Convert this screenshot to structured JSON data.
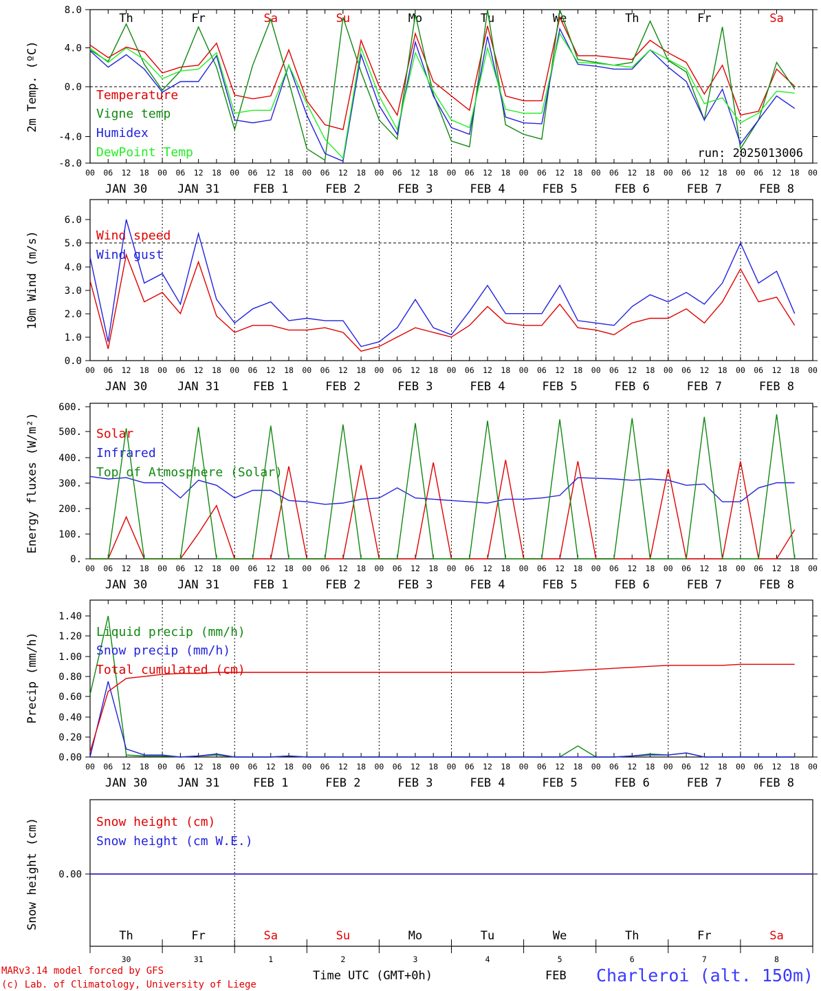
{
  "chart_data": [
    {
      "type": "line",
      "ylabel": "2m Temp. (ºC)",
      "ylim": [
        -8,
        8
      ],
      "yticks": [
        "-8.0",
        "-4.0",
        "0.0",
        "4.0",
        "8.0"
      ],
      "annotation": "run: 2025013006",
      "day_of_week": [
        "Th",
        "Fr",
        "Sa",
        "Su",
        "Mo",
        "Tu",
        "We",
        "Th",
        "Fr",
        "Sa"
      ],
      "weekend_color": "#e00000",
      "x_hours": [
        0,
        6,
        12,
        18,
        24,
        30,
        36,
        42,
        48,
        54,
        60,
        66,
        72,
        78,
        84,
        90,
        96,
        102,
        108,
        114,
        120,
        126,
        132,
        138,
        144,
        150,
        156,
        162,
        168,
        174,
        180,
        186,
        192,
        198,
        204,
        210,
        216,
        222,
        228,
        234
      ],
      "series": [
        {
          "name": "Temperature",
          "color": "#e00000",
          "values": [
            4.3,
            3.0,
            4.1,
            3.6,
            1.4,
            2.0,
            2.2,
            4.5,
            -0.9,
            -1.3,
            -1.0,
            3.8,
            -1.5,
            -4.0,
            -4.5,
            4.8,
            0.0,
            -3.0,
            5.5,
            0.5,
            -1.0,
            -2.5,
            6.3,
            -1.0,
            -1.5,
            -1.5,
            7.2,
            3.2,
            3.2,
            3.0,
            2.8,
            4.8,
            3.5,
            2.5,
            -0.8,
            2.2,
            -3.0,
            -2.6,
            1.8,
            0.0
          ]
        },
        {
          "name": "Vigne temp",
          "color": "#118811",
          "values": [
            3.8,
            2.6,
            6.5,
            2.3,
            -0.4,
            1.6,
            6.2,
            2.0,
            -4.5,
            2.2,
            7.0,
            0.5,
            -6.5,
            -7.7,
            7.2,
            1.5,
            -3.5,
            -5.5,
            7.5,
            -0.8,
            -5.7,
            -6.3,
            8.0,
            -4.0,
            -5.0,
            -5.5,
            8.0,
            2.8,
            2.5,
            2.2,
            2.5,
            6.8,
            2.7,
            1.5,
            -3.5,
            6.2,
            -6.5,
            -3.5,
            2.5,
            -0.3
          ]
        },
        {
          "name": "Humidex",
          "color": "#2222dd",
          "values": [
            3.7,
            2.0,
            3.3,
            1.8,
            -0.6,
            0.5,
            0.5,
            3.2,
            -3.5,
            -3.8,
            -3.5,
            2.2,
            -3.0,
            -7.0,
            -7.8,
            3.3,
            -2.0,
            -5.0,
            4.6,
            -1.0,
            -4.3,
            -5.0,
            5.2,
            -3.2,
            -3.8,
            -3.9,
            6.0,
            2.3,
            2.1,
            1.8,
            1.8,
            3.8,
            2.0,
            0.5,
            -3.5,
            -0.3,
            -6.0,
            -3.5,
            -1.0,
            -2.3
          ]
        },
        {
          "name": "DewPoint Temp",
          "color": "#22ee22",
          "values": [
            4.0,
            2.5,
            4.0,
            2.8,
            0.8,
            1.6,
            1.8,
            3.5,
            -2.8,
            -2.5,
            -2.5,
            2.2,
            -1.8,
            -5.5,
            -7.5,
            4.0,
            -1.0,
            -4.5,
            3.5,
            -0.5,
            -3.5,
            -4.3,
            4.0,
            -2.4,
            -2.8,
            -2.8,
            5.5,
            2.5,
            2.4,
            2.2,
            2.0,
            3.8,
            2.8,
            1.8,
            -1.8,
            -1.2,
            -3.8,
            -2.8,
            -0.5,
            -0.7
          ]
        }
      ]
    },
    {
      "type": "line",
      "ylabel": "10m Wind (m/s)",
      "ylim": [
        0,
        6.5
      ],
      "yticks": [
        "0.0",
        "1.0",
        "2.0",
        "3.0",
        "4.0",
        "5.0",
        "6.0"
      ],
      "x_hours": [
        0,
        6,
        12,
        18,
        24,
        30,
        36,
        42,
        48,
        54,
        60,
        66,
        72,
        78,
        84,
        90,
        96,
        102,
        108,
        114,
        120,
        126,
        132,
        138,
        144,
        150,
        156,
        162,
        168,
        174,
        180,
        186,
        192,
        198,
        204,
        210,
        216,
        222,
        228,
        234
      ],
      "series": [
        {
          "name": "Wind speed",
          "color": "#e00000",
          "values": [
            3.4,
            0.5,
            4.5,
            2.5,
            2.9,
            2.0,
            4.2,
            1.9,
            1.2,
            1.5,
            1.5,
            1.3,
            1.3,
            1.4,
            1.2,
            0.4,
            0.6,
            1.0,
            1.4,
            1.2,
            1.0,
            1.5,
            2.3,
            1.6,
            1.5,
            1.5,
            2.4,
            1.4,
            1.3,
            1.1,
            1.6,
            1.8,
            1.8,
            2.2,
            1.6,
            2.5,
            3.9,
            2.5,
            2.7,
            1.5
          ]
        },
        {
          "name": "Wind gust",
          "color": "#2222dd",
          "values": [
            4.4,
            0.8,
            6.0,
            3.3,
            3.7,
            2.4,
            5.4,
            2.6,
            1.6,
            2.2,
            2.5,
            1.7,
            1.8,
            1.7,
            1.7,
            0.6,
            0.8,
            1.4,
            2.6,
            1.4,
            1.1,
            2.1,
            3.2,
            2.0,
            2.0,
            2.0,
            3.2,
            1.7,
            1.6,
            1.5,
            2.3,
            2.8,
            2.5,
            2.9,
            2.4,
            3.3,
            5.0,
            3.3,
            3.8,
            2.0
          ]
        }
      ]
    },
    {
      "type": "line",
      "ylabel": "Energy fluxes (W/m²)",
      "ylim": [
        0,
        600
      ],
      "yticks": [
        "0.",
        "100.",
        "200.",
        "300.",
        "400.",
        "500.",
        "600."
      ],
      "x_hours": [
        0,
        6,
        12,
        18,
        24,
        30,
        36,
        42,
        48,
        54,
        60,
        66,
        72,
        78,
        84,
        90,
        96,
        102,
        108,
        114,
        120,
        126,
        132,
        138,
        144,
        150,
        156,
        162,
        168,
        174,
        180,
        186,
        192,
        198,
        204,
        210,
        216,
        222,
        228,
        234
      ],
      "series": [
        {
          "name": "Solar",
          "color": "#e00000",
          "values": [
            0,
            0,
            165,
            0,
            0,
            0,
            100,
            210,
            0,
            0,
            0,
            365,
            0,
            0,
            0,
            370,
            0,
            0,
            0,
            380,
            0,
            0,
            0,
            390,
            0,
            0,
            0,
            385,
            0,
            0,
            0,
            0,
            355,
            0,
            0,
            0,
            385,
            0,
            0,
            115
          ]
        },
        {
          "name": "Infrared",
          "color": "#2222dd",
          "values": [
            325,
            315,
            320,
            300,
            300,
            240,
            310,
            290,
            240,
            270,
            270,
            230,
            225,
            215,
            220,
            235,
            240,
            280,
            240,
            235,
            230,
            225,
            220,
            235,
            235,
            240,
            250,
            320,
            318,
            315,
            310,
            315,
            310,
            290,
            295,
            225,
            225,
            280,
            300,
            300
          ]
        },
        {
          "name": "Top of Atmosphere (Solar)",
          "color": "#118811",
          "values": [
            0,
            0,
            515,
            0,
            0,
            0,
            520,
            0,
            0,
            0,
            525,
            0,
            0,
            0,
            530,
            0,
            0,
            0,
            535,
            0,
            0,
            0,
            545,
            0,
            0,
            0,
            550,
            0,
            0,
            0,
            555,
            0,
            0,
            0,
            560,
            0,
            0,
            0,
            570,
            0
          ]
        }
      ]
    },
    {
      "type": "line",
      "ylabel": "Precip (mm/h)",
      "ylim": [
        0,
        1.5
      ],
      "yticks": [
        "0.00",
        "0.20",
        "0.40",
        "0.60",
        "0.80",
        "1.00",
        "1.20",
        "1.40"
      ],
      "x_hours": [
        0,
        6,
        12,
        18,
        24,
        30,
        36,
        42,
        48,
        54,
        60,
        66,
        72,
        78,
        84,
        90,
        96,
        102,
        108,
        114,
        120,
        126,
        132,
        138,
        144,
        150,
        156,
        162,
        168,
        174,
        180,
        186,
        192,
        198,
        204,
        210,
        216,
        222,
        228,
        234
      ],
      "series": [
        {
          "name": "Liquid precip (mm/h)",
          "color": "#118811",
          "values": [
            0.62,
            1.4,
            0.02,
            0.01,
            0.01,
            0,
            0.01,
            0.02,
            0,
            0,
            0,
            0.01,
            0,
            0,
            0,
            0,
            0,
            0,
            0,
            0,
            0,
            0,
            0,
            0,
            0,
            0,
            0,
            0.11,
            0,
            0,
            0.01,
            0.03,
            0.02,
            0.04,
            0,
            0,
            0,
            0,
            0,
            0
          ]
        },
        {
          "name": "Snow precip (mm/h)",
          "color": "#2222dd",
          "values": [
            0,
            0.75,
            0.08,
            0.02,
            0.02,
            0,
            0.01,
            0.03,
            0,
            0,
            0,
            0.01,
            0,
            0,
            0,
            0,
            0,
            0,
            0,
            0,
            0,
            0,
            0,
            0,
            0,
            0,
            0,
            0,
            0,
            0,
            0.01,
            0.02,
            0.02,
            0.04,
            0,
            0,
            0,
            0,
            0,
            0
          ]
        },
        {
          "name": "Total cumulated (cm)",
          "color": "#e00000",
          "values": [
            0.05,
            0.65,
            0.78,
            0.8,
            0.82,
            0.83,
            0.83,
            0.84,
            0.84,
            0.84,
            0.84,
            0.84,
            0.84,
            0.84,
            0.84,
            0.84,
            0.84,
            0.84,
            0.84,
            0.84,
            0.84,
            0.84,
            0.84,
            0.84,
            0.84,
            0.84,
            0.85,
            0.86,
            0.87,
            0.88,
            0.89,
            0.9,
            0.91,
            0.91,
            0.91,
            0.91,
            0.92,
            0.92,
            0.92,
            0.92
          ]
        }
      ]
    },
    {
      "type": "line",
      "ylabel": "Snow height (cm)",
      "yticks": [
        "0.00"
      ],
      "x_hours": [
        0,
        234
      ],
      "series": [
        {
          "name": "Snow height (cm)",
          "color": "#e00000",
          "values": [
            0,
            0
          ]
        },
        {
          "name": "Snow height (cm W.E.)",
          "color": "#2222dd",
          "values": [
            0,
            0
          ]
        }
      ]
    }
  ],
  "x_axis": {
    "day_labels": [
      "JAN 30",
      "JAN 31",
      "FEB  1",
      "FEB  2",
      "FEB  3",
      "FEB  4",
      "FEB  5",
      "FEB  6",
      "FEB  7",
      "FEB  8"
    ],
    "hour_ticks": [
      "00",
      "06",
      "12",
      "18"
    ],
    "end_tick": "00",
    "bottom_day_numbers": [
      "30",
      "31",
      "1",
      "2",
      "3",
      "4",
      "5",
      "6",
      "7",
      "8"
    ],
    "month_label": "FEB",
    "title": "Time UTC (GMT+0h)"
  },
  "footer": {
    "model_line": "MARv3.14 model forced by GFS",
    "copyright_line": "(c) Lab. of Climatology, University of Liege",
    "station": "Charleroi (alt. 150m)"
  }
}
